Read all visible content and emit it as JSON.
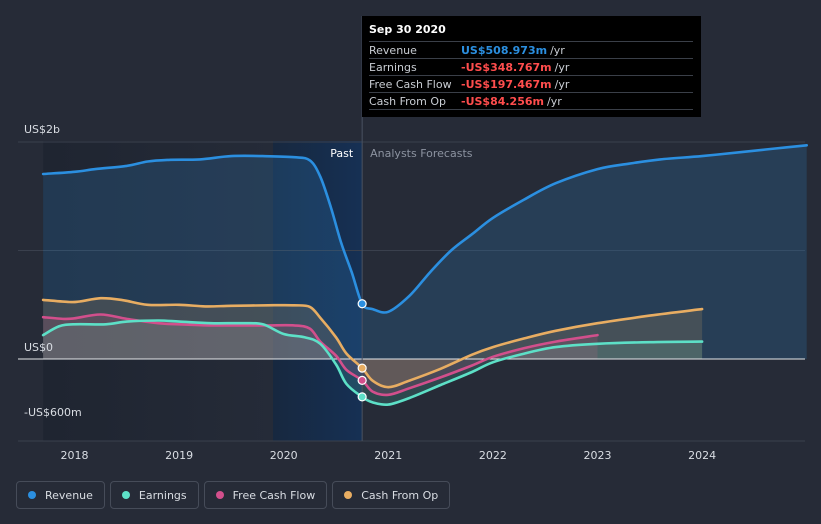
{
  "chart_data": {
    "type": "area",
    "currency_unit": "US$m",
    "y_axis": {
      "ticks": [
        {
          "value": 2000,
          "label": "US$2b"
        },
        {
          "value": 0,
          "label": "US$0"
        },
        {
          "value": -600,
          "label": "-US$600m"
        }
      ],
      "ylim": [
        -750,
        2000
      ]
    },
    "x_axis": {
      "ticks": [
        {
          "value": 2018,
          "label": "2018"
        },
        {
          "value": 2019,
          "label": "2019"
        },
        {
          "value": 2020,
          "label": "2020"
        },
        {
          "value": 2021,
          "label": "2021"
        },
        {
          "value": 2022,
          "label": "2022"
        },
        {
          "value": 2023,
          "label": "2023"
        },
        {
          "value": 2024,
          "label": "2024"
        }
      ],
      "xlim": [
        2017.5,
        2025.0
      ]
    },
    "past_label": "Past",
    "forecast_label": "Analysts Forecasts",
    "divider_x": 2020.75,
    "series": [
      {
        "name": "Revenue",
        "color": "#2b8fe0",
        "points": [
          [
            2017.7,
            1705
          ],
          [
            2018.0,
            1725
          ],
          [
            2018.2,
            1750
          ],
          [
            2018.5,
            1780
          ],
          [
            2018.7,
            1820
          ],
          [
            2018.9,
            1835
          ],
          [
            2019.2,
            1840
          ],
          [
            2019.5,
            1870
          ],
          [
            2019.8,
            1870
          ],
          [
            2020.1,
            1860
          ],
          [
            2020.25,
            1830
          ],
          [
            2020.35,
            1680
          ],
          [
            2020.45,
            1400
          ],
          [
            2020.55,
            1070
          ],
          [
            2020.65,
            800
          ],
          [
            2020.75,
            509
          ],
          [
            2020.85,
            460
          ],
          [
            2021.0,
            435
          ],
          [
            2021.2,
            580
          ],
          [
            2021.4,
            800
          ],
          [
            2021.6,
            1000
          ],
          [
            2021.8,
            1150
          ],
          [
            2022.0,
            1300
          ],
          [
            2022.3,
            1470
          ],
          [
            2022.6,
            1620
          ],
          [
            2023.0,
            1750
          ],
          [
            2023.3,
            1800
          ],
          [
            2023.6,
            1840
          ],
          [
            2024.0,
            1870
          ],
          [
            2024.4,
            1910
          ],
          [
            2024.7,
            1940
          ],
          [
            2025.0,
            1970
          ]
        ]
      },
      {
        "name": "Earnings",
        "color": "#5de0c7",
        "points": [
          [
            2017.7,
            220
          ],
          [
            2017.85,
            300
          ],
          [
            2018.0,
            320
          ],
          [
            2018.3,
            320
          ],
          [
            2018.5,
            345
          ],
          [
            2018.8,
            355
          ],
          [
            2019.0,
            345
          ],
          [
            2019.3,
            330
          ],
          [
            2019.6,
            330
          ],
          [
            2019.8,
            320
          ],
          [
            2020.0,
            230
          ],
          [
            2020.2,
            200
          ],
          [
            2020.35,
            140
          ],
          [
            2020.5,
            -50
          ],
          [
            2020.6,
            -230
          ],
          [
            2020.75,
            -349
          ],
          [
            2020.85,
            -400
          ],
          [
            2021.0,
            -420
          ],
          [
            2021.2,
            -360
          ],
          [
            2021.5,
            -240
          ],
          [
            2021.8,
            -120
          ],
          [
            2022.0,
            -30
          ],
          [
            2022.3,
            50
          ],
          [
            2022.6,
            110
          ],
          [
            2023.0,
            140
          ],
          [
            2023.5,
            155
          ],
          [
            2024.0,
            160
          ]
        ]
      },
      {
        "name": "Free Cash Flow",
        "color": "#d24f8c",
        "points": [
          [
            2017.7,
            385
          ],
          [
            2017.9,
            370
          ],
          [
            2018.0,
            375
          ],
          [
            2018.25,
            410
          ],
          [
            2018.5,
            370
          ],
          [
            2018.8,
            330
          ],
          [
            2019.0,
            320
          ],
          [
            2019.3,
            310
          ],
          [
            2019.6,
            310
          ],
          [
            2019.85,
            310
          ],
          [
            2020.1,
            310
          ],
          [
            2020.25,
            280
          ],
          [
            2020.35,
            160
          ],
          [
            2020.5,
            30
          ],
          [
            2020.6,
            -100
          ],
          [
            2020.75,
            -197
          ],
          [
            2020.85,
            -300
          ],
          [
            2021.0,
            -330
          ],
          [
            2021.2,
            -270
          ],
          [
            2021.5,
            -170
          ],
          [
            2021.8,
            -60
          ],
          [
            2022.0,
            20
          ],
          [
            2022.3,
            100
          ],
          [
            2022.6,
            160
          ],
          [
            2023.0,
            220
          ]
        ]
      },
      {
        "name": "Cash From Op",
        "color": "#e8ad62",
        "points": [
          [
            2017.7,
            545
          ],
          [
            2017.95,
            525
          ],
          [
            2018.05,
            530
          ],
          [
            2018.25,
            560
          ],
          [
            2018.45,
            545
          ],
          [
            2018.7,
            500
          ],
          [
            2019.0,
            500
          ],
          [
            2019.25,
            485
          ],
          [
            2019.5,
            490
          ],
          [
            2019.85,
            495
          ],
          [
            2020.1,
            495
          ],
          [
            2020.25,
            480
          ],
          [
            2020.35,
            380
          ],
          [
            2020.5,
            200
          ],
          [
            2020.6,
            50
          ],
          [
            2020.75,
            -84
          ],
          [
            2020.85,
            -200
          ],
          [
            2021.0,
            -260
          ],
          [
            2021.2,
            -200
          ],
          [
            2021.5,
            -90
          ],
          [
            2021.8,
            40
          ],
          [
            2022.0,
            110
          ],
          [
            2022.3,
            190
          ],
          [
            2022.6,
            260
          ],
          [
            2023.0,
            330
          ],
          [
            2023.5,
            400
          ],
          [
            2024.0,
            460
          ]
        ]
      }
    ],
    "highlight_markers": [
      {
        "series": "Revenue",
        "x": 2020.75,
        "y": 509
      },
      {
        "series": "Earnings",
        "x": 2020.75,
        "y": -349
      },
      {
        "series": "Free Cash Flow",
        "x": 2020.75,
        "y": -197
      },
      {
        "series": "Cash From Op",
        "x": 2020.75,
        "y": -84
      }
    ]
  },
  "tooltip": {
    "date": "Sep 30 2020",
    "rows": [
      {
        "label": "Revenue",
        "value": "US$508.973m",
        "unit": "/yr",
        "color": "#2b8fe0"
      },
      {
        "label": "Earnings",
        "value": "-US$348.767m",
        "unit": "/yr",
        "color": "#ff4d4d"
      },
      {
        "label": "Free Cash Flow",
        "value": "-US$197.467m",
        "unit": "/yr",
        "color": "#ff4d4d"
      },
      {
        "label": "Cash From Op",
        "value": "-US$84.256m",
        "unit": "/yr",
        "color": "#ff4d4d"
      }
    ]
  },
  "legend": [
    {
      "label": "Revenue",
      "color": "#2b8fe0"
    },
    {
      "label": "Earnings",
      "color": "#5de0c7"
    },
    {
      "label": "Free Cash Flow",
      "color": "#d24f8c"
    },
    {
      "label": "Cash From Op",
      "color": "#e8ad62"
    }
  ]
}
